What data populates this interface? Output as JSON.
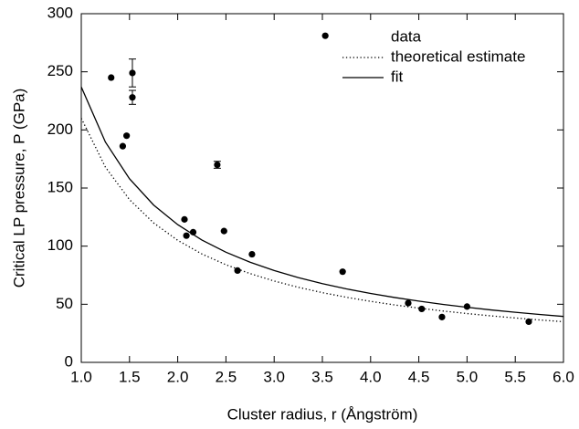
{
  "chart_data": {
    "type": "scatter",
    "xlabel": "Cluster radius, r (Ångström)",
    "ylabel": "Critical LP pressure, P (GPa)",
    "xlim": [
      1,
      6
    ],
    "ylim": [
      0,
      300
    ],
    "xticks": [
      {
        "value": 1,
        "label": "1.0"
      },
      {
        "value": 1.5,
        "label": "1.5"
      },
      {
        "value": 2,
        "label": "2.0"
      },
      {
        "value": 2.5,
        "label": "2.5"
      },
      {
        "value": 3,
        "label": "3.0"
      },
      {
        "value": 3.5,
        "label": "3.5"
      },
      {
        "value": 4,
        "label": "4.0"
      },
      {
        "value": 4.5,
        "label": "4.5"
      },
      {
        "value": 5,
        "label": "5.0"
      },
      {
        "value": 5.5,
        "label": "5.5"
      },
      {
        "value": 6,
        "label": "6.0"
      }
    ],
    "yticks": [
      0,
      50,
      100,
      150,
      200,
      250,
      300
    ],
    "legend": "upper right",
    "series": [
      {
        "name": "data",
        "type": "scatter",
        "color": "#000000",
        "x": [
          1.31,
          1.43,
          1.47,
          1.53,
          1.53,
          2.07,
          2.09,
          2.16,
          2.41,
          2.48,
          2.62,
          2.77,
          3.53,
          3.71,
          4.39,
          4.53,
          4.74,
          5.0,
          5.64
        ],
        "values": [
          245,
          186,
          195,
          249,
          228,
          123,
          109,
          112,
          170,
          113,
          79,
          93,
          281,
          78,
          51,
          46,
          39,
          48,
          35
        ],
        "errors": [
          null,
          null,
          null,
          12,
          6,
          null,
          null,
          null,
          3,
          null,
          null,
          null,
          null,
          null,
          null,
          null,
          null,
          null,
          null
        ]
      },
      {
        "name": "theoretical estimate",
        "type": "line",
        "style": "dotted",
        "color": "#000000",
        "x": [
          1,
          1.25,
          1.5,
          1.75,
          2,
          2.25,
          2.5,
          2.75,
          3,
          3.25,
          3.5,
          3.75,
          4,
          4.25,
          4.5,
          4.75,
          5,
          5.25,
          5.5,
          5.75,
          6
        ],
        "values": [
          210,
          168,
          140,
          120,
          105,
          93.3,
          84,
          76.4,
          70,
          64.6,
          60,
          56,
          52.5,
          49.4,
          46.7,
          44.2,
          42,
          40,
          38.2,
          36.5,
          35
        ]
      },
      {
        "name": "fit",
        "type": "line",
        "style": "solid",
        "color": "#000000",
        "x": [
          1,
          1.25,
          1.5,
          1.75,
          2,
          2.25,
          2.5,
          2.75,
          3,
          3.25,
          3.5,
          3.75,
          4,
          4.25,
          4.5,
          4.75,
          5,
          5.25,
          5.5,
          5.75,
          6
        ],
        "values": [
          237,
          189.6,
          158,
          135.4,
          118.5,
          105.3,
          94.8,
          86.2,
          79,
          72.9,
          67.7,
          63.2,
          59.3,
          55.8,
          52.7,
          49.9,
          47.4,
          45.1,
          43.1,
          41.2,
          39.5
        ]
      }
    ]
  }
}
